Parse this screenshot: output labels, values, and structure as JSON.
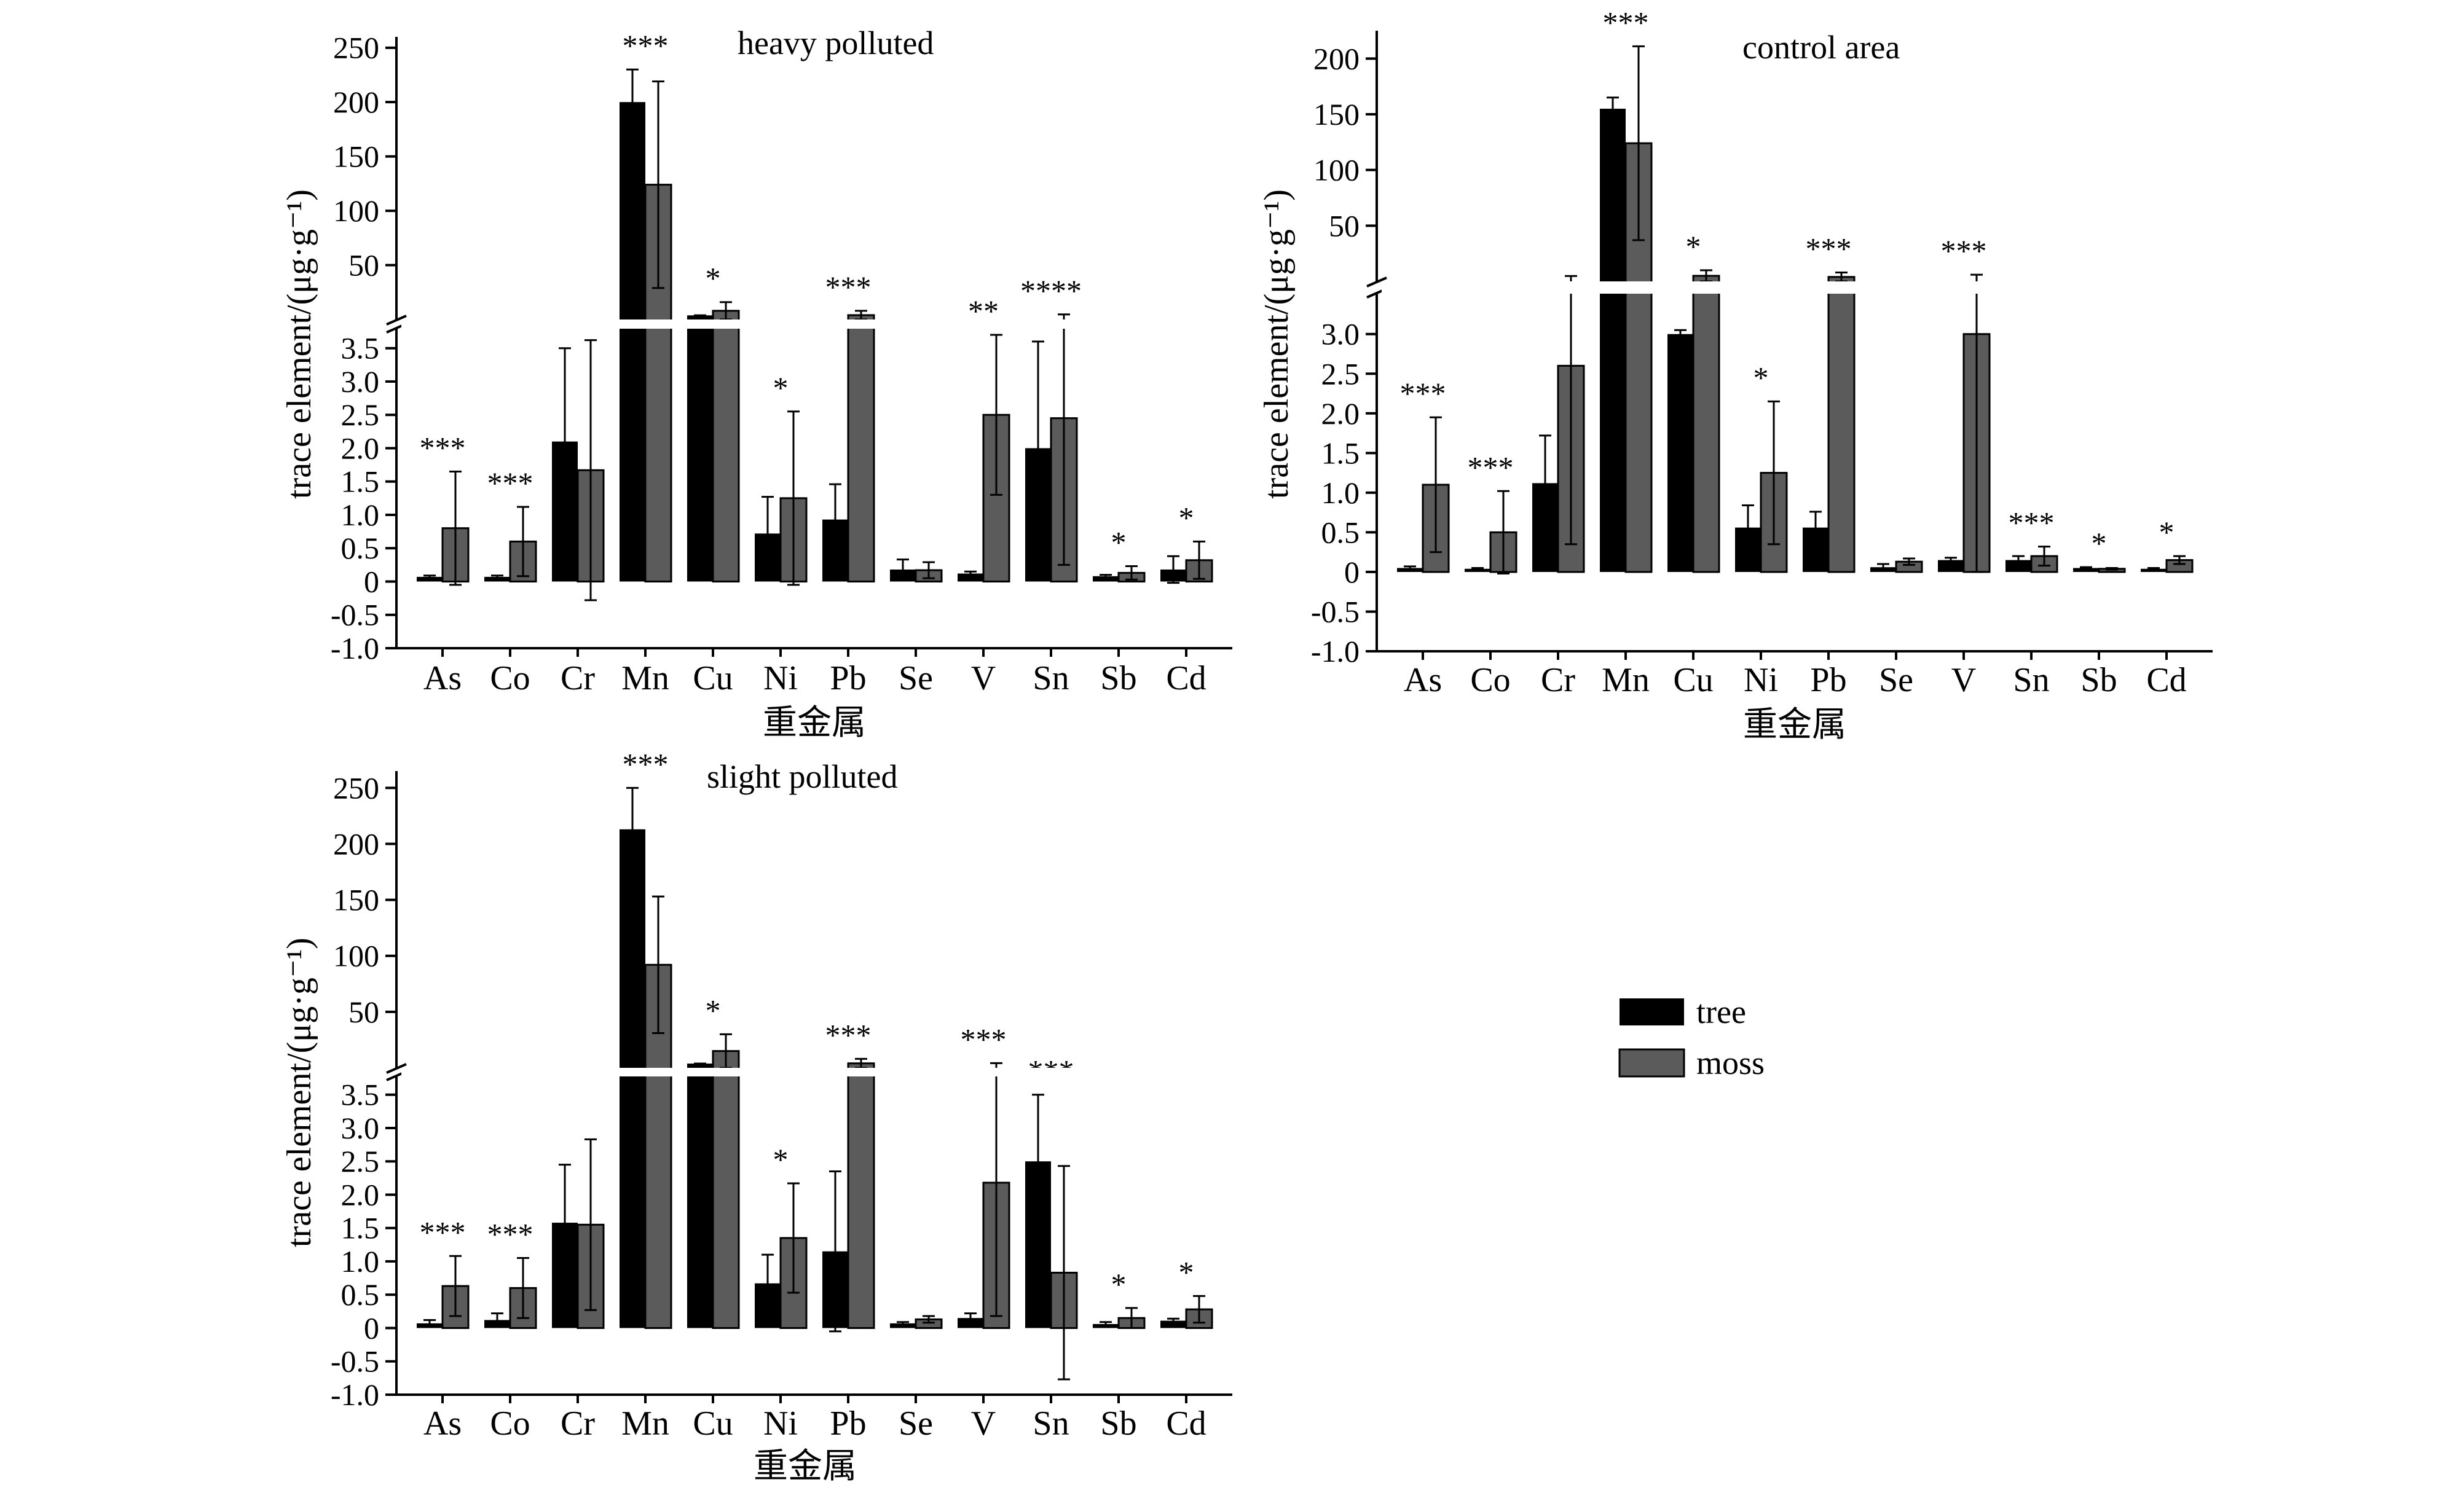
{
  "legend": {
    "items": [
      {
        "name": "tree",
        "color": "#000000"
      },
      {
        "name": "moss",
        "color": "#5b5b5b"
      }
    ]
  },
  "chart_data": [
    {
      "type": "bar",
      "title": "heavy polluted",
      "xlabel": "重金属",
      "ylabel": "trace element/(μg·g⁻¹)",
      "categories": [
        "As",
        "Co",
        "Cr",
        "Mn",
        "Cu",
        "Ni",
        "Pb",
        "Se",
        "V",
        "Sn",
        "Sb",
        "Cd"
      ],
      "y_lower_ticks": [
        "-1.0",
        "-0.5",
        "0",
        "0.5",
        "1.0",
        "1.5",
        "2.0",
        "2.5",
        "3.0",
        "3.5"
      ],
      "y_upper_ticks": [
        "50",
        "100",
        "150",
        "200",
        "250"
      ],
      "ylim_lower": [
        -1.0,
        3.7
      ],
      "ylim_upper": [
        0,
        260
      ],
      "series": [
        {
          "name": "tree",
          "values": [
            0.07,
            0.07,
            2.1,
            200,
            3.8,
            0.72,
            0.93,
            0.18,
            0.12,
            2.0,
            0.08,
            0.18
          ],
          "errors": [
            0.02,
            0.02,
            1.4,
            30,
            0.05,
            0.55,
            0.53,
            0.15,
            0.03,
            1.6,
            0.02,
            0.2
          ]
        },
        {
          "name": "moss",
          "values": [
            0.8,
            0.6,
            1.67,
            124,
            8,
            1.25,
            4,
            0.17,
            2.5,
            2.45,
            0.13,
            0.32
          ],
          "errors": [
            0.85,
            0.52,
            1.95,
            95,
            8,
            1.3,
            4,
            0.12,
            1.2,
            2.2,
            0.1,
            0.28
          ]
        }
      ],
      "significance": [
        "***",
        "***",
        "",
        "***",
        "*",
        "*",
        "***",
        "",
        "**",
        "****",
        "*",
        "*"
      ]
    },
    {
      "type": "bar",
      "title": "control area",
      "xlabel": "重金属",
      "ylabel": "trace element/(μg·g⁻¹)",
      "categories": [
        "As",
        "Co",
        "Cr",
        "Mn",
        "Cu",
        "Ni",
        "Pb",
        "Se",
        "V",
        "Sn",
        "Sb",
        "Cd"
      ],
      "y_lower_ticks": [
        "-1.0",
        "-0.5",
        "0",
        "0.5",
        "1.0",
        "1.5",
        "2.0",
        "2.5",
        "3.0"
      ],
      "y_upper_ticks": [
        "50",
        "100",
        "150",
        "200"
      ],
      "ylim_lower": [
        -1.0,
        3.3
      ],
      "ylim_upper": [
        0,
        225
      ],
      "series": [
        {
          "name": "tree",
          "values": [
            0.05,
            0.04,
            1.12,
            155,
            3.0,
            0.56,
            0.56,
            0.06,
            0.15,
            0.15,
            0.05,
            0.04
          ],
          "errors": [
            0.02,
            0.01,
            0.6,
            10,
            0.05,
            0.28,
            0.2,
            0.04,
            0.03,
            0.05,
            0.01,
            0.01
          ]
        },
        {
          "name": "moss",
          "values": [
            1.1,
            0.5,
            2.6,
            124,
            5,
            1.25,
            4,
            0.13,
            3.0,
            0.2,
            0.04,
            0.15
          ],
          "errors": [
            0.85,
            0.52,
            2.25,
            87,
            5,
            0.9,
            4,
            0.04,
            3.0,
            0.12,
            0.01,
            0.05
          ]
        }
      ],
      "significance": [
        "***",
        "***",
        "",
        "***",
        "*",
        "*",
        "***",
        "",
        "***",
        "***",
        "*",
        "*"
      ]
    },
    {
      "type": "bar",
      "title": "slight polluted",
      "xlabel": "重金属",
      "ylabel": "trace element/(μg·g⁻¹)",
      "categories": [
        "As",
        "Co",
        "Cr",
        "Mn",
        "Cu",
        "Ni",
        "Pb",
        "Se",
        "V",
        "Sn",
        "Sb",
        "Cd"
      ],
      "y_lower_ticks": [
        "-1.0",
        "-0.5",
        "0",
        "0.5",
        "1.0",
        "1.5",
        "2.0",
        "2.5",
        "3.0",
        "3.5"
      ],
      "y_upper_ticks": [
        "50",
        "100",
        "150",
        "200",
        "250"
      ],
      "ylim_lower": [
        -1.0,
        3.7
      ],
      "ylim_upper": [
        0,
        265
      ],
      "series": [
        {
          "name": "tree",
          "values": [
            0.07,
            0.12,
            1.58,
            213,
            3.8,
            0.67,
            1.15,
            0.07,
            0.15,
            2.5,
            0.06,
            0.11
          ],
          "errors": [
            0.05,
            0.1,
            0.87,
            37,
            0.05,
            0.43,
            1.2,
            0.02,
            0.07,
            1.0,
            0.03,
            0.03
          ]
        },
        {
          "name": "moss",
          "values": [
            0.63,
            0.6,
            1.55,
            92,
            15,
            1.35,
            4,
            0.13,
            2.18,
            0.83,
            0.15,
            0.28
          ],
          "errors": [
            0.45,
            0.45,
            1.28,
            61,
            15,
            0.82,
            4,
            0.05,
            2.0,
            1.6,
            0.15,
            0.2
          ]
        }
      ],
      "significance": [
        "***",
        "***",
        "",
        "***",
        "*",
        "*",
        "***",
        "",
        "***",
        "***",
        "*",
        "*"
      ]
    }
  ]
}
